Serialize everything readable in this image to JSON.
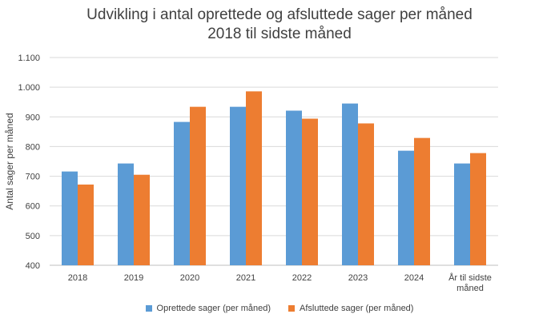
{
  "chart_data": {
    "type": "bar",
    "title": "Udvikling i antal oprettede og afsluttede sager per måned",
    "subtitle": "2018 til sidste måned",
    "xlabel": "",
    "ylabel": "Antal sager per måned",
    "ylim": [
      400,
      1100
    ],
    "yticks": [
      "400",
      "500",
      "600",
      "700",
      "800",
      "900",
      "1.000",
      "1.100"
    ],
    "categories": [
      "2018",
      "2019",
      "2020",
      "2021",
      "2022",
      "2023",
      "2024",
      "År til sidste måned"
    ],
    "category_lines": [
      [
        "2018"
      ],
      [
        "2019"
      ],
      [
        "2020"
      ],
      [
        "2021"
      ],
      [
        "2022"
      ],
      [
        "2023"
      ],
      [
        "2024"
      ],
      [
        "År til sidste",
        "måned"
      ]
    ],
    "series": [
      {
        "name": "Oprettede sager (per måned)",
        "color": "#5B9BD5",
        "values": [
          716,
          743,
          883,
          934,
          921,
          945,
          786,
          743
        ]
      },
      {
        "name": "Afsluttede sager (per måned)",
        "color": "#ED7D31",
        "values": [
          672,
          705,
          934,
          986,
          894,
          878,
          829,
          778
        ]
      }
    ],
    "grid": true,
    "legend_position": "bottom"
  }
}
